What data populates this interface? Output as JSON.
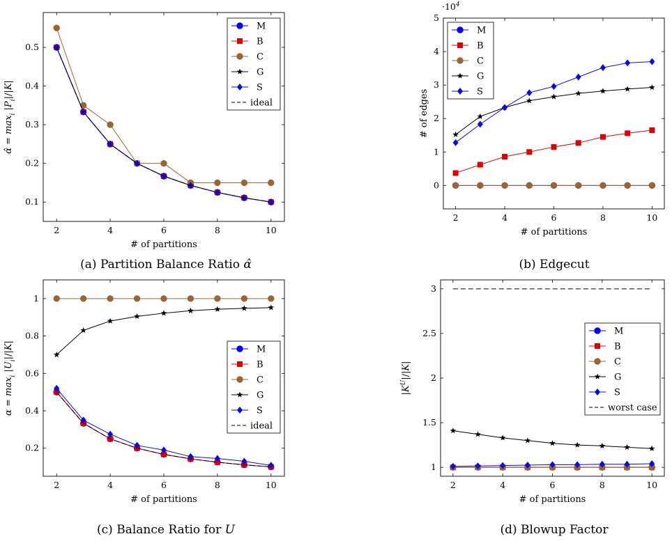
{
  "colors": {
    "M": "#0000ff",
    "B": "#e00000",
    "C": "#996633",
    "G": "#000000",
    "S": "#0a0ae0",
    "ref": "#000000"
  },
  "chart_data": [
    {
      "id": "a",
      "type": "line",
      "caption": "(a) Partition Balance Ratio α̂",
      "xlabel": "# of partitions",
      "ylabel": "α̂ = max_i |P_i|/|K|",
      "xlim": [
        1.5,
        10.5
      ],
      "ylim": [
        0.05,
        0.59
      ],
      "xticks": [
        2,
        4,
        6,
        8,
        10
      ],
      "yticks": [
        0.1,
        0.2,
        0.3,
        0.4,
        0.5
      ],
      "ytick_labels": [
        "0.1",
        "0.2",
        "0.3",
        "0.4",
        "0.5"
      ],
      "exponent_label": "",
      "legend_position": "top-right",
      "x": [
        2,
        3,
        4,
        5,
        6,
        7,
        8,
        9,
        10
      ],
      "series": [
        {
          "name": "M",
          "marker": "circle",
          "values": [
            0.5,
            0.333,
            0.25,
            0.2,
            0.167,
            0.143,
            0.125,
            0.111,
            0.1
          ]
        },
        {
          "name": "B",
          "marker": "square",
          "values": [
            0.5,
            0.333,
            0.25,
            0.2,
            0.167,
            0.143,
            0.125,
            0.111,
            0.1
          ]
        },
        {
          "name": "C",
          "marker": "circle",
          "values": [
            0.55,
            0.35,
            0.3,
            0.2,
            0.2,
            0.15,
            0.15,
            0.15,
            0.15
          ]
        },
        {
          "name": "G",
          "marker": "star",
          "values": [
            0.5,
            0.333,
            0.25,
            0.2,
            0.167,
            0.143,
            0.125,
            0.111,
            0.1
          ]
        },
        {
          "name": "S",
          "marker": "diamond",
          "values": [
            0.5,
            0.333,
            0.25,
            0.2,
            0.167,
            0.143,
            0.125,
            0.111,
            0.1
          ]
        },
        {
          "name": "ideal",
          "marker": "none",
          "dashed": true,
          "values": [
            0.5,
            0.333,
            0.25,
            0.2,
            0.167,
            0.143,
            0.125,
            0.111,
            0.1
          ]
        }
      ]
    },
    {
      "id": "b",
      "type": "line",
      "caption": "(b) Edgecut",
      "xlabel": "# of partitions",
      "ylabel": "# of edges",
      "xlim": [
        1.5,
        10.5
      ],
      "ylim": [
        -0.7,
        5
      ],
      "xticks": [
        2,
        4,
        6,
        8,
        10
      ],
      "yticks": [
        0,
        1,
        2,
        3,
        4,
        5
      ],
      "ytick_labels": [
        "0",
        "1",
        "2",
        "3",
        "4",
        "5"
      ],
      "exponent_label": "·10",
      "exponent_power": "4",
      "legend_position": "top-left",
      "x": [
        2,
        3,
        4,
        5,
        6,
        7,
        8,
        9,
        10
      ],
      "series": [
        {
          "name": "M",
          "marker": "circle",
          "values": [
            0,
            0,
            0,
            0,
            0,
            0,
            0,
            0,
            0
          ]
        },
        {
          "name": "B",
          "marker": "square",
          "values": [
            0.37,
            0.62,
            0.86,
            1.0,
            1.15,
            1.27,
            1.45,
            1.56,
            1.65
          ]
        },
        {
          "name": "C",
          "marker": "circle",
          "values": [
            0,
            0,
            0,
            0,
            0,
            0,
            0,
            0,
            0
          ]
        },
        {
          "name": "G",
          "marker": "star",
          "values": [
            1.52,
            2.06,
            2.33,
            2.53,
            2.65,
            2.75,
            2.82,
            2.88,
            2.93
          ]
        },
        {
          "name": "S",
          "marker": "diamond",
          "values": [
            1.28,
            1.83,
            2.33,
            2.77,
            2.96,
            3.24,
            3.52,
            3.66,
            3.7
          ]
        }
      ]
    },
    {
      "id": "c",
      "type": "line",
      "caption": "(c) Balance Ratio for U",
      "xlabel": "# of partitions",
      "ylabel": "α = max_i |U_i|/|K|",
      "xlim": [
        1.5,
        10.5
      ],
      "ylim": [
        0.05,
        1.1
      ],
      "xticks": [
        2,
        4,
        6,
        8,
        10
      ],
      "yticks": [
        0.2,
        0.4,
        0.6,
        0.8,
        1.0
      ],
      "ytick_labels": [
        "0.2",
        "0.4",
        "0.6",
        "0.8",
        "1"
      ],
      "exponent_label": "",
      "legend_position": "center-right",
      "x": [
        2,
        3,
        4,
        5,
        6,
        7,
        8,
        9,
        10
      ],
      "series": [
        {
          "name": "M",
          "marker": "circle",
          "values": [
            0.5,
            0.333,
            0.25,
            0.2,
            0.167,
            0.143,
            0.125,
            0.111,
            0.1
          ]
        },
        {
          "name": "B",
          "marker": "square",
          "values": [
            0.5,
            0.333,
            0.25,
            0.2,
            0.167,
            0.143,
            0.125,
            0.111,
            0.1
          ]
        },
        {
          "name": "C",
          "marker": "circle",
          "values": [
            1,
            1,
            1,
            1,
            1,
            1,
            1,
            1,
            1
          ]
        },
        {
          "name": "G",
          "marker": "star",
          "values": [
            0.7,
            0.83,
            0.88,
            0.905,
            0.922,
            0.935,
            0.943,
            0.948,
            0.952
          ]
        },
        {
          "name": "S",
          "marker": "diamond",
          "values": [
            0.52,
            0.35,
            0.275,
            0.215,
            0.19,
            0.155,
            0.145,
            0.13,
            0.108
          ]
        },
        {
          "name": "ideal",
          "marker": "none",
          "dashed": true,
          "values": [
            0.5,
            0.333,
            0.25,
            0.2,
            0.167,
            0.143,
            0.125,
            0.111,
            0.1
          ]
        }
      ]
    },
    {
      "id": "d",
      "type": "line",
      "caption": "(d) Blowup Factor",
      "xlabel": "# of partitions",
      "ylabel": "|K^U|/|K|",
      "xlim": [
        1.5,
        10.5
      ],
      "ylim": [
        0.9,
        3.1
      ],
      "xticks": [
        2,
        4,
        6,
        8,
        10
      ],
      "yticks": [
        1,
        1.5,
        2,
        2.5,
        3
      ],
      "ytick_labels": [
        "1",
        "1.5",
        "2",
        "2.5",
        "3"
      ],
      "exponent_label": "",
      "legend_position": "center-right",
      "x": [
        2,
        3,
        4,
        5,
        6,
        7,
        8,
        9,
        10
      ],
      "series": [
        {
          "name": "M",
          "marker": "circle",
          "values": [
            1.0,
            1.0,
            1.0,
            1.0,
            1.0,
            1.0,
            1.0,
            1.0,
            1.0
          ]
        },
        {
          "name": "B",
          "marker": "square",
          "values": [
            1.0,
            1.0,
            1.0,
            1.0,
            1.0,
            1.0,
            1.0,
            1.0,
            1.0
          ]
        },
        {
          "name": "C",
          "marker": "circle",
          "values": [
            1.0,
            1.0,
            1.0,
            1.0,
            1.0,
            1.0,
            1.0,
            1.0,
            1.0
          ]
        },
        {
          "name": "G",
          "marker": "star",
          "values": [
            1.41,
            1.37,
            1.33,
            1.3,
            1.27,
            1.25,
            1.24,
            1.225,
            1.21
          ]
        },
        {
          "name": "S",
          "marker": "diamond",
          "values": [
            1.01,
            1.015,
            1.02,
            1.025,
            1.03,
            1.03,
            1.035,
            1.035,
            1.04
          ]
        },
        {
          "name": "worst case",
          "marker": "none",
          "dashed": true,
          "values": [
            3,
            3,
            3,
            3,
            3,
            3,
            3,
            3,
            3
          ]
        }
      ]
    }
  ]
}
